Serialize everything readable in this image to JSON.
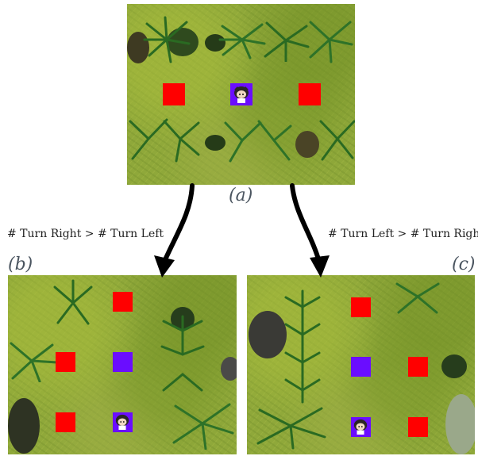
{
  "captions": {
    "a": "(a)",
    "b": "(b)",
    "c": "(c)"
  },
  "rules": {
    "left": "# Turn Right > # Turn Left",
    "right": "# Turn Left > # Turn Right"
  },
  "colors": {
    "goal_tile": "#ff0000",
    "visited_tile": "#6a0dff",
    "grass": "#8fa83a",
    "caption_text": "#4b5560"
  },
  "icons": {
    "agent": "agent-character-icon",
    "plant": "fern-plant-icon",
    "bush": "bush-icon",
    "arrow": "curved-arrow-icon"
  }
}
